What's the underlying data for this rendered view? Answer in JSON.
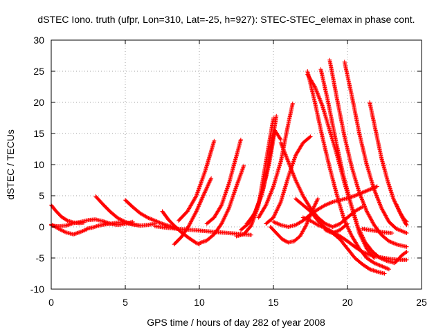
{
  "chart_data": {
    "type": "scatter",
    "title": "dSTEC Iono. truth (ufpr, Lon=310, Lat=-25, h=927): STEC-STEC_elemax in phase cont.",
    "xlabel": "GPS time / hours of day 282 of year 2008",
    "ylabel": "dSTEC  / TECUs",
    "xlim": [
      0,
      25
    ],
    "ylim": [
      -10,
      30
    ],
    "xticks": [
      0,
      5,
      10,
      15,
      20,
      25
    ],
    "yticks": [
      -10,
      -5,
      0,
      5,
      10,
      15,
      20,
      25,
      30
    ],
    "grid": true,
    "marker": "+",
    "color": "#ff0000",
    "series": [
      {
        "x": [
          0.0,
          0.3,
          0.7,
          1.1,
          1.5,
          1.9,
          2.2
        ],
        "y": [
          3.5,
          2.6,
          1.6,
          1.0,
          0.7,
          0.6,
          0.7
        ]
      },
      {
        "x": [
          0.0,
          0.5,
          1.0,
          1.5,
          2.0,
          2.5,
          3.0,
          3.5,
          4.0,
          4.5,
          5.0,
          5.5
        ],
        "y": [
          0.2,
          0.1,
          0.2,
          0.6,
          0.8,
          1.1,
          1.2,
          0.9,
          0.5,
          0.3,
          0.5,
          0.8
        ]
      },
      {
        "x": [
          0.0,
          0.5,
          1.0,
          1.5,
          2.0,
          2.4
        ],
        "y": [
          0.4,
          -0.3,
          -0.9,
          -1.2,
          -0.8,
          -0.4
        ]
      },
      {
        "x": [
          2.4,
          2.8,
          3.2,
          3.6,
          4.0,
          4.5,
          5.0,
          5.5,
          6.0,
          6.5,
          7.0
        ],
        "y": [
          -0.3,
          -0.1,
          0.2,
          0.4,
          0.5,
          0.7,
          0.6,
          0.4,
          0.2,
          0.3,
          0.5
        ]
      },
      {
        "x": [
          3.0,
          3.5,
          4.0,
          4.5,
          5.0,
          5.5,
          6.0
        ],
        "y": [
          4.9,
          3.6,
          2.4,
          1.4,
          0.8,
          0.4,
          0.2
        ]
      },
      {
        "x": [
          5.0,
          5.5,
          6.0,
          6.5,
          7.0,
          7.5,
          8.0,
          8.5
        ],
        "y": [
          4.3,
          3.2,
          2.2,
          1.5,
          1.0,
          0.5,
          0.1,
          -0.3
        ]
      },
      {
        "x": [
          7.5,
          7.9,
          8.3,
          8.8,
          9.3,
          9.8,
          10.0
        ],
        "y": [
          2.5,
          1.2,
          0.2,
          -0.9,
          -1.8,
          -2.6,
          -2.8
        ]
      },
      {
        "x": [
          8.3,
          8.8,
          9.3,
          9.8,
          10.3,
          10.8
        ],
        "y": [
          -2.8,
          -1.6,
          0.2,
          2.5,
          5.2,
          7.8
        ]
      },
      {
        "x": [
          8.6,
          9.2,
          9.8,
          10.4,
          11.0
        ],
        "y": [
          1.0,
          2.5,
          5.0,
          9.0,
          13.8
        ]
      },
      {
        "x": [
          10.0,
          10.5,
          11.0,
          11.5,
          12.0,
          12.5,
          13.0
        ],
        "y": [
          -2.6,
          -2.2,
          -1.2,
          0.5,
          3.0,
          6.5,
          9.8
        ]
      },
      {
        "x": [
          10.5,
          11.0,
          11.5,
          12.0,
          12.4,
          12.8
        ],
        "y": [
          0.5,
          1.5,
          3.5,
          7.0,
          10.5,
          14.0
        ]
      },
      {
        "x": [
          7.0,
          8.0,
          9.0,
          10.0,
          11.0,
          12.0,
          13.0,
          13.5
        ],
        "y": [
          0.1,
          -0.2,
          -0.4,
          -0.6,
          -0.8,
          -1.0,
          -1.2,
          -1.3
        ]
      },
      {
        "x": [
          12.5,
          13.0,
          13.5,
          14.0,
          14.5,
          15.0
        ],
        "y": [
          -1.5,
          -1.2,
          0.2,
          3.5,
          10.5,
          17.5
        ]
      },
      {
        "x": [
          12.8,
          13.3,
          13.8,
          14.3,
          14.8,
          15.2
        ],
        "y": [
          -0.5,
          0.5,
          2.5,
          6.0,
          12.0,
          17.8
        ]
      },
      {
        "x": [
          13.2,
          13.7,
          14.2,
          14.7,
          15.1,
          15.5
        ],
        "y": [
          0.5,
          2.0,
          5.0,
          10.0,
          15.5,
          14.0
        ]
      },
      {
        "x": [
          14.0,
          14.5,
          15.0,
          15.5,
          16.0,
          16.3
        ],
        "y": [
          1.5,
          3.5,
          6.5,
          10.5,
          16.5,
          19.8
        ]
      },
      {
        "x": [
          14.5,
          15.0,
          15.5,
          16.0,
          16.5,
          17.0,
          17.5
        ],
        "y": [
          0.5,
          1.5,
          4.0,
          8.0,
          11.5,
          13.5,
          14.5
        ]
      },
      {
        "x": [
          15.0,
          15.5,
          16.0,
          16.5,
          17.0,
          17.5,
          18.0,
          18.5,
          19.0,
          19.5,
          20.0,
          20.5,
          21.0,
          21.5,
          22.0
        ],
        "y": [
          0.8,
          0.3,
          0.0,
          0.3,
          1.0,
          2.0,
          2.8,
          3.5,
          4.0,
          4.3,
          4.6,
          5.0,
          5.5,
          6.0,
          6.5
        ]
      },
      {
        "x": [
          14.8,
          15.2,
          15.6,
          16.0,
          16.4,
          16.8,
          17.2,
          17.6,
          18.0
        ],
        "y": [
          0.0,
          -1.0,
          -2.0,
          -2.5,
          -2.3,
          -1.5,
          0.2,
          2.5,
          4.5
        ]
      },
      {
        "x": [
          15.5,
          16.0,
          16.5,
          17.0,
          17.5,
          18.0,
          18.5,
          19.0,
          19.5,
          20.0,
          20.5,
          21.0
        ],
        "y": [
          13.5,
          10.5,
          7.5,
          5.0,
          3.0,
          1.5,
          0.5,
          0.0,
          0.5,
          1.5,
          2.5,
          3.2
        ]
      },
      {
        "x": [
          16.5,
          17.0,
          17.5,
          18.0,
          18.5,
          19.0,
          19.5,
          20.0
        ],
        "y": [
          4.5,
          3.5,
          2.5,
          1.0,
          -0.2,
          -1.0,
          -0.5,
          0.5
        ]
      },
      {
        "x": [
          17.3,
          17.8,
          18.3,
          18.8,
          19.3,
          19.8,
          20.3,
          20.8,
          21.3,
          21.8,
          22.3,
          22.8
        ],
        "y": [
          25.0,
          20.0,
          14.5,
          9.5,
          5.0,
          1.0,
          -1.5,
          -3.5,
          -5.0,
          -5.8,
          -6.3,
          -6.8
        ]
      },
      {
        "x": [
          17.3,
          17.8,
          18.3,
          18.8,
          19.3,
          19.8,
          20.3,
          20.8,
          21.3,
          21.8
        ],
        "y": [
          24.5,
          22.5,
          19.5,
          15.5,
          11.5,
          7.0,
          3.0,
          -1.0,
          -3.5,
          -5.0
        ]
      },
      {
        "x": [
          18.2,
          18.7,
          19.2,
          19.7,
          20.2,
          20.7,
          21.2,
          21.7,
          22.2,
          22.7,
          23.2,
          23.7,
          24.0
        ],
        "y": [
          25.3,
          20.0,
          14.0,
          8.5,
          4.0,
          0.0,
          -2.5,
          -4.0,
          -5.0,
          -5.5,
          -5.8,
          -4.5,
          -4.0
        ]
      },
      {
        "x": [
          18.8,
          19.3,
          19.8,
          20.3,
          20.8,
          21.3,
          21.8,
          22.3,
          22.8,
          23.3,
          23.8,
          24.0
        ],
        "y": [
          26.8,
          20.5,
          14.5,
          9.5,
          5.5,
          2.5,
          0.3,
          -1.3,
          -2.3,
          -2.8,
          -3.1,
          -3.2
        ]
      },
      {
        "x": [
          19.8,
          20.3,
          20.8,
          21.3,
          21.8,
          22.3,
          22.8,
          23.3,
          23.8,
          24.0
        ],
        "y": [
          26.5,
          21.0,
          15.0,
          10.0,
          6.0,
          3.0,
          0.8,
          -0.3,
          -0.8,
          -1.0
        ]
      },
      {
        "x": [
          21.5,
          21.9,
          22.3,
          22.7,
          23.1,
          23.5,
          23.8,
          24.0
        ],
        "y": [
          20.0,
          15.5,
          11.0,
          7.5,
          4.5,
          2.5,
          1.3,
          0.8
        ]
      },
      {
        "x": [
          18.5,
          19.0,
          19.5,
          20.0,
          20.5,
          21.0,
          21.5,
          22.0,
          22.5
        ],
        "y": [
          -0.5,
          -1.0,
          -2.0,
          -3.5,
          -5.0,
          -6.0,
          -6.8,
          -7.2,
          -7.5
        ]
      },
      {
        "x": [
          17.0,
          17.5,
          18.0,
          18.5,
          19.0,
          19.5,
          20.0,
          20.5,
          21.0,
          21.5,
          22.0,
          22.5,
          23.0,
          23.5,
          24.0
        ],
        "y": [
          1.5,
          1.0,
          0.3,
          -0.2,
          -0.8,
          -1.5,
          -2.3,
          -3.2,
          -4.0,
          -4.5,
          -4.8,
          -5.0,
          -5.2,
          -5.3,
          -5.3
        ]
      },
      {
        "x": [
          21.0,
          21.5,
          22.0,
          22.5,
          23.0
        ],
        "y": [
          -0.3,
          -0.5,
          -0.7,
          -0.9,
          -1.0
        ]
      },
      {
        "x": [
          23.3,
          23.6,
          23.9,
          24.0
        ],
        "y": [
          3.6,
          2.0,
          0.6,
          0.3
        ]
      }
    ]
  }
}
